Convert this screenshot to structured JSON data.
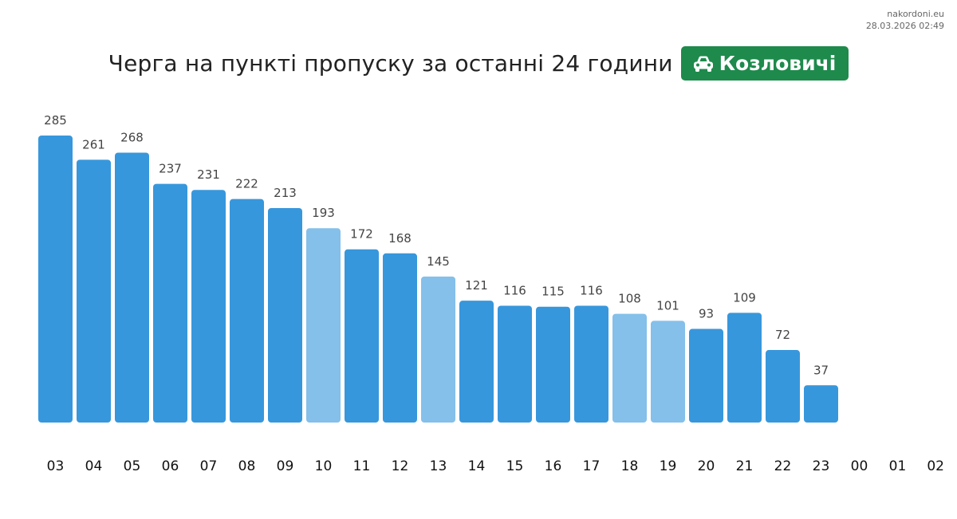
{
  "site": {
    "name": "nakordoni.eu",
    "timestamp": "28.03.2026 02:49"
  },
  "header": {
    "title": "Черга на пункті пропуску за останні 24 години",
    "checkpoint": "Козловичі",
    "badge_icon": "car-icon",
    "badge_color": "#1e8a4c"
  },
  "colors": {
    "bar": "#3797dc",
    "bar_highlight": "#84c0ea"
  },
  "chart_data": {
    "type": "bar",
    "title": "Черга на пункті пропуску за останні 24 години",
    "xlabel": "",
    "ylabel": "",
    "ylim": [
      0,
      285
    ],
    "grid": false,
    "categories": [
      "03",
      "04",
      "05",
      "06",
      "07",
      "08",
      "09",
      "10",
      "11",
      "12",
      "13",
      "14",
      "15",
      "16",
      "17",
      "18",
      "19",
      "20",
      "21",
      "22",
      "23",
      "00",
      "01",
      "02"
    ],
    "values": [
      285,
      261,
      268,
      237,
      231,
      222,
      213,
      193,
      172,
      168,
      145,
      121,
      116,
      115,
      116,
      108,
      101,
      93,
      109,
      72,
      37,
      null,
      null,
      null
    ],
    "highlighted": [
      "10",
      "13",
      "18",
      "19"
    ]
  }
}
